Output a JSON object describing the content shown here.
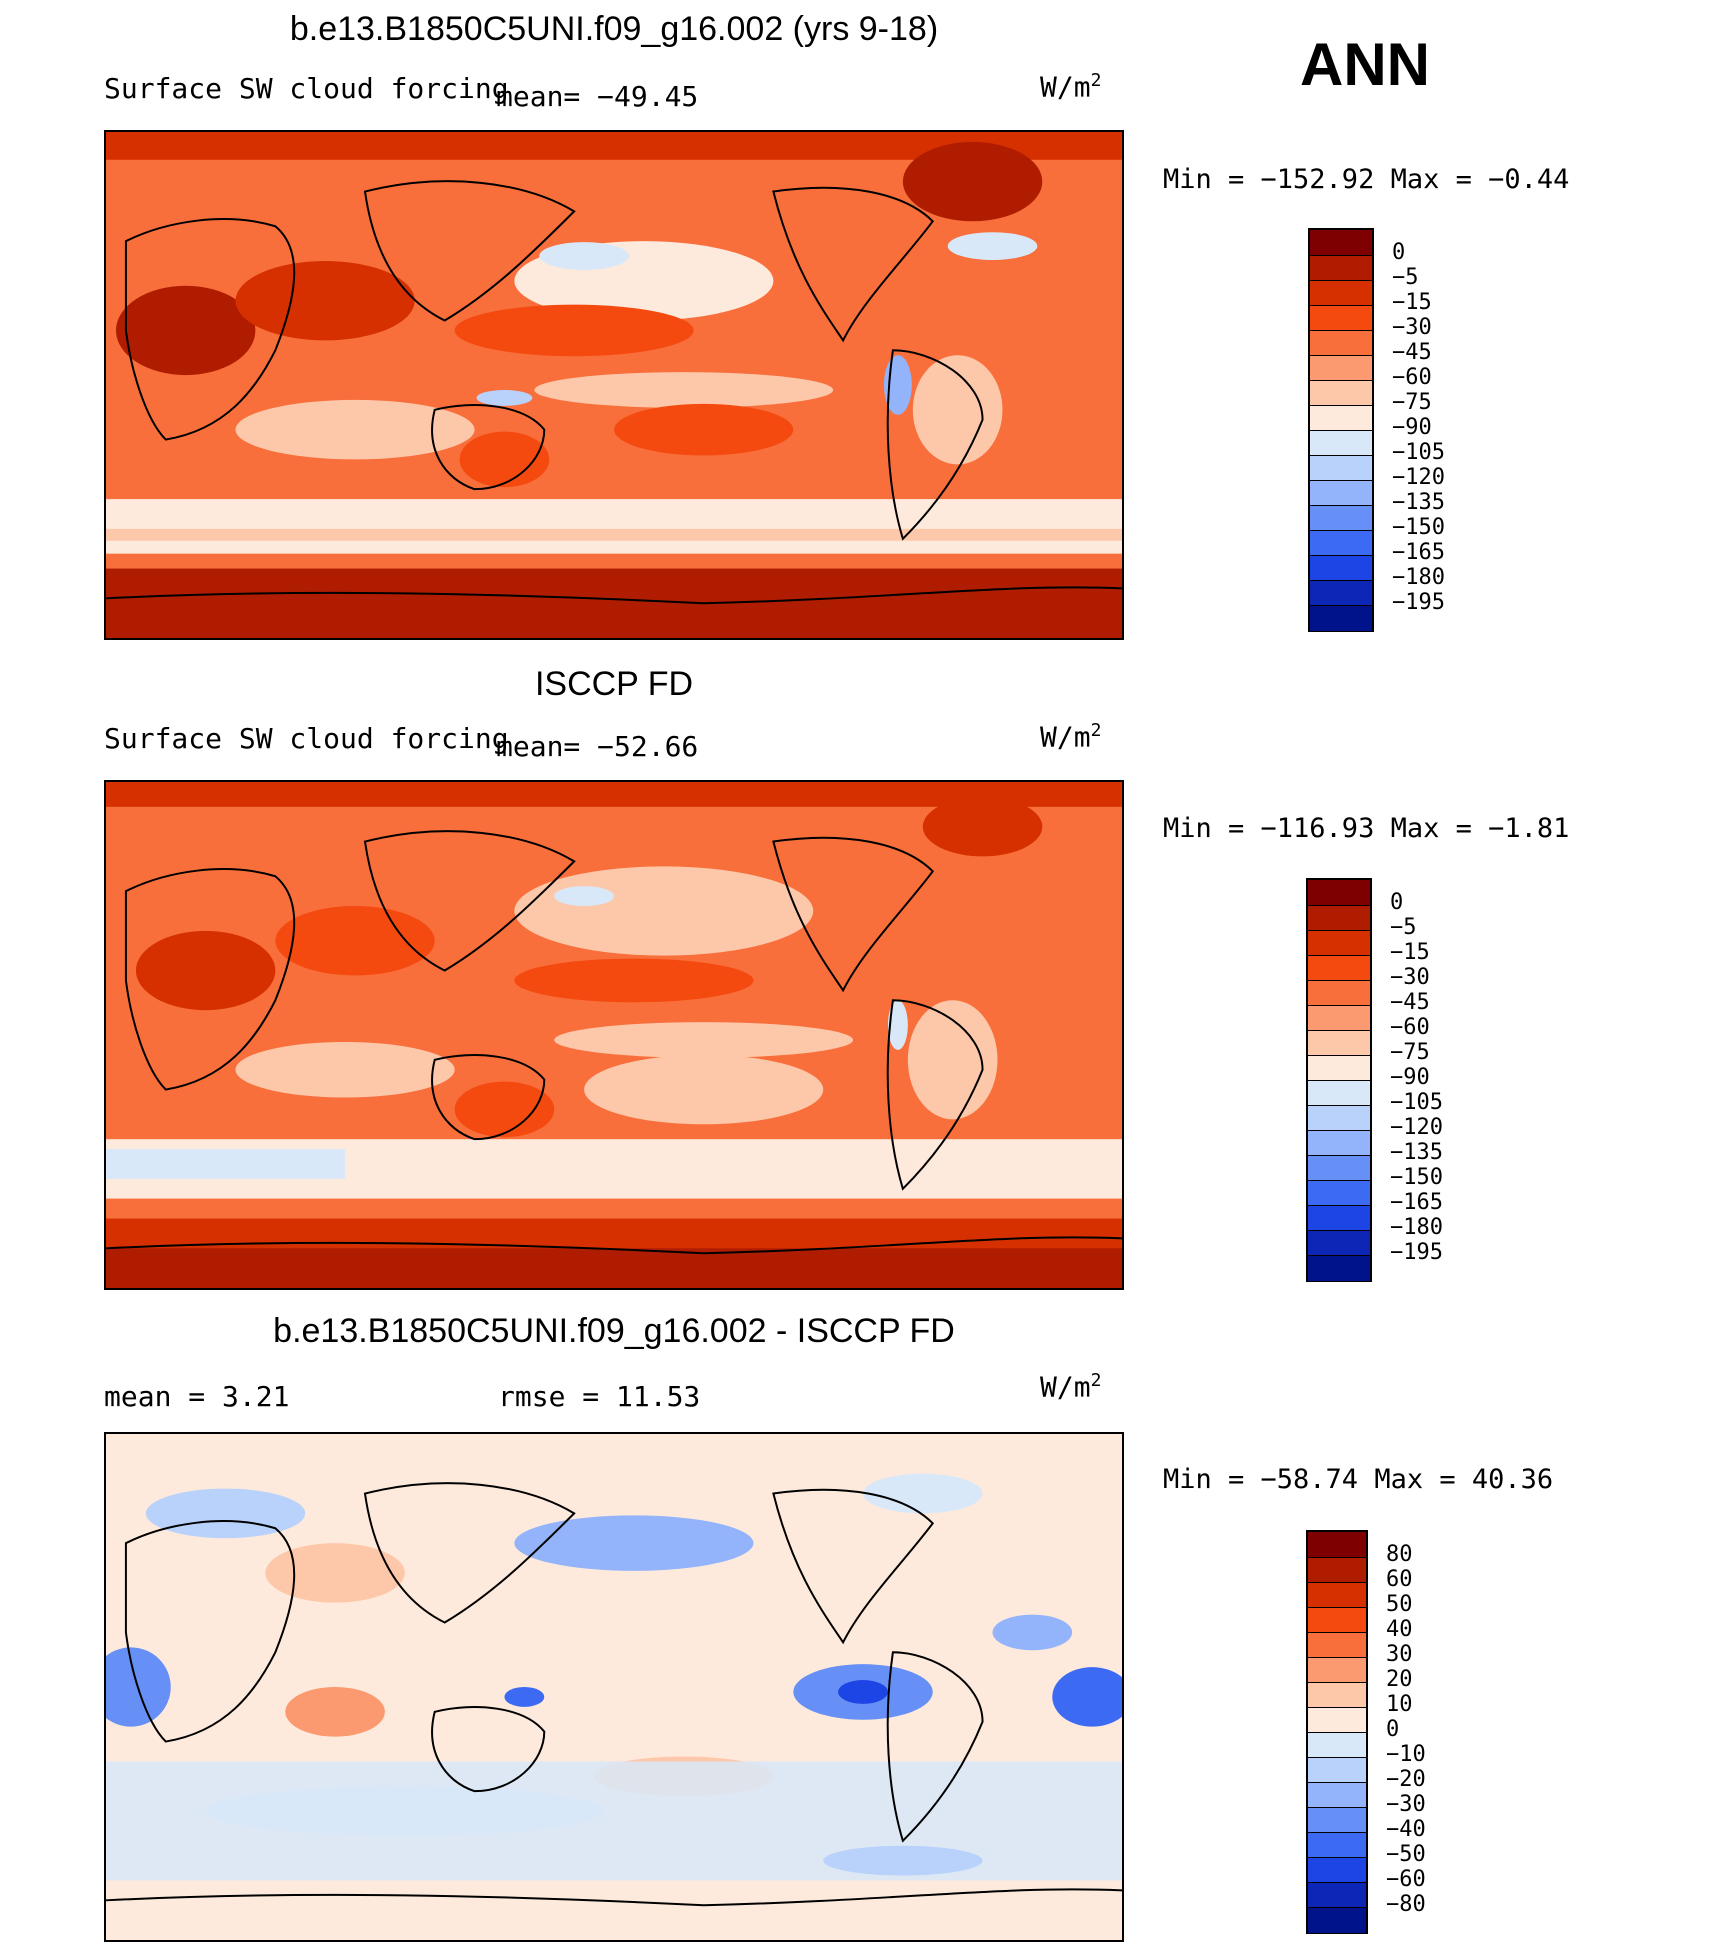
{
  "season": "ANN",
  "units_text": "W/m",
  "units_exp": "2",
  "panels": [
    {
      "title": "b.e13.B1850C5UNI.f09_g16.002 (yrs 9-18)",
      "left_label": "Surface SW cloud forcing",
      "mean_text": "mean= −49.45",
      "minmax": "Min = −152.92 Max =  −0.44",
      "levels": [
        "0",
        "−5",
        "−15",
        "−30",
        "−45",
        "−60",
        "−75",
        "−90",
        "−105",
        "−120",
        "−135",
        "−150",
        "−165",
        "−180",
        "−195"
      ]
    },
    {
      "title": "ISCCP FD",
      "left_label": "Surface SW cloud forcing",
      "mean_text": "mean= −52.66",
      "minmax": "Min = −116.93 Max =  −1.81",
      "levels": [
        "0",
        "−5",
        "−15",
        "−30",
        "−45",
        "−60",
        "−75",
        "−90",
        "−105",
        "−120",
        "−135",
        "−150",
        "−165",
        "−180",
        "−195"
      ]
    },
    {
      "title": "b.e13.B1850C5UNI.f09_g16.002 - ISCCP FD",
      "left_label": "mean =    3.21",
      "mean_text": "rmse =   11.53",
      "minmax": "Min = −58.74 Max =  40.36",
      "levels": [
        "80",
        "60",
        "50",
        "40",
        "30",
        "20",
        "10",
        "0",
        "−10",
        "−20",
        "−30",
        "−40",
        "−50",
        "−60",
        "−80"
      ]
    }
  ],
  "colors": {
    "abs_scale": [
      "#7f0000",
      "#b01c00",
      "#d63000",
      "#f44a10",
      "#f86f3c",
      "#fb9a70",
      "#fdc8aa",
      "#feeadc",
      "#d8e8f8",
      "#b8d2fb",
      "#93b4fa",
      "#6690f5",
      "#3d6af2",
      "#1d44e4",
      "#0e26b5",
      "#00138b"
    ],
    "diff_scale": [
      "#7f0000",
      "#b01c00",
      "#d63000",
      "#f44a10",
      "#f86f3c",
      "#fb9a70",
      "#fdc8aa",
      "#feeadc",
      "#d8e8f8",
      "#b8d2fb",
      "#93b4fa",
      "#6690f5",
      "#3d6af2",
      "#1d44e4",
      "#0e26b5",
      "#00138b"
    ]
  },
  "chart_data": [
    {
      "type": "heatmap",
      "title": "b.e13.B1850C5UNI.f09_g16.002 (yrs 9-18)",
      "field": "Surface SW cloud forcing",
      "units": "W/m2",
      "mean": -49.45,
      "min": -152.92,
      "max": -0.44,
      "contour_levels": [
        0,
        -5,
        -15,
        -30,
        -45,
        -60,
        -75,
        -90,
        -105,
        -120,
        -135,
        -150,
        -165,
        -180,
        -195
      ]
    },
    {
      "type": "heatmap",
      "title": "ISCCP FD",
      "field": "Surface SW cloud forcing",
      "units": "W/m2",
      "mean": -52.66,
      "min": -116.93,
      "max": -1.81,
      "contour_levels": [
        0,
        -5,
        -15,
        -30,
        -45,
        -60,
        -75,
        -90,
        -105,
        -120,
        -135,
        -150,
        -165,
        -180,
        -195
      ]
    },
    {
      "type": "heatmap",
      "title": "b.e13.B1850C5UNI.f09_g16.002 - ISCCP FD",
      "units": "W/m2",
      "mean": 3.21,
      "rmse": 11.53,
      "min": -58.74,
      "max": 40.36,
      "contour_levels": [
        80,
        60,
        50,
        40,
        30,
        20,
        10,
        0,
        -10,
        -20,
        -30,
        -40,
        -50,
        -60,
        -80
      ]
    }
  ]
}
